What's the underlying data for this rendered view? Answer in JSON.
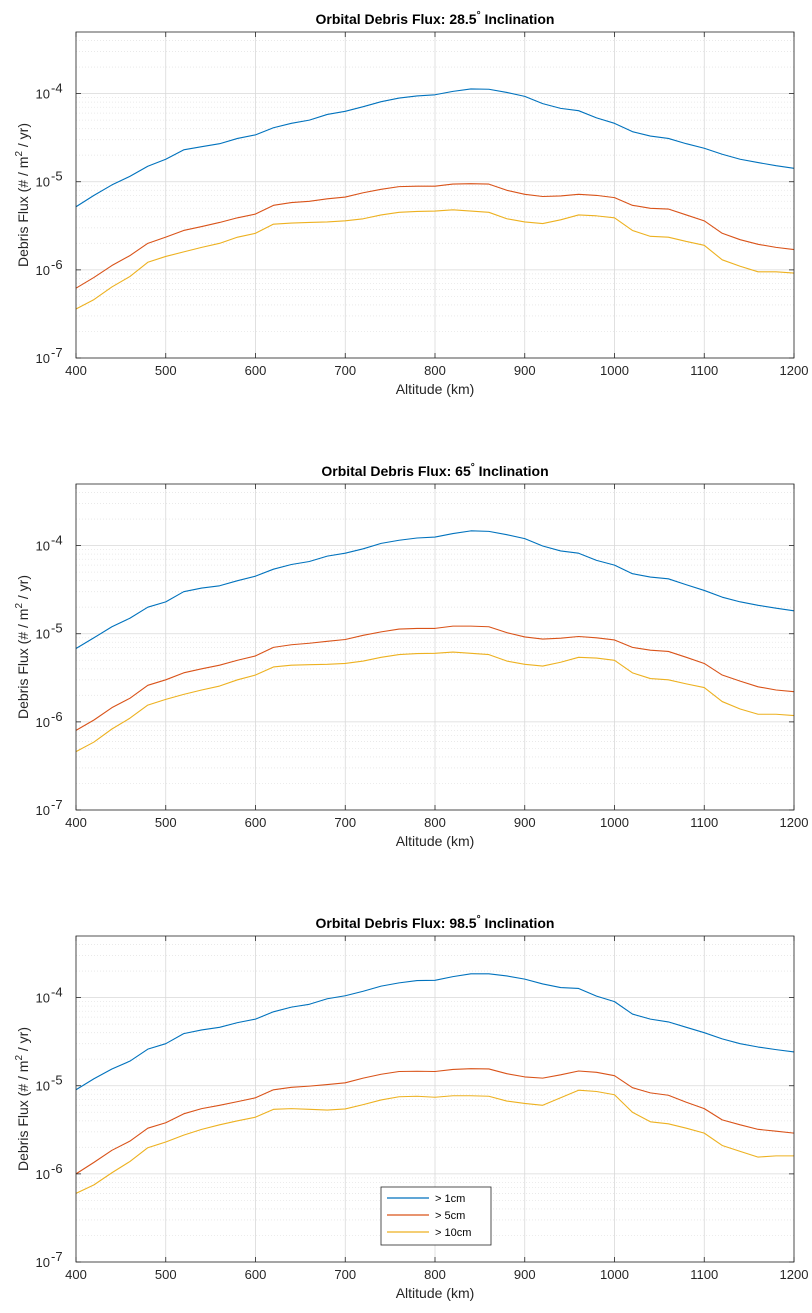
{
  "colors": {
    "series_1cm": "#0072BD",
    "series_5cm": "#D95319",
    "series_10cm": "#EDB120",
    "grid_major": "#d9d9d9",
    "grid_minor": "#e6e6e6",
    "axis": "#262626"
  },
  "chart_data": [
    {
      "type": "line",
      "title_prefix": "Orbital Debris Flux:  28.5",
      "title_degree": "°",
      "title_suffix": " Inclination",
      "xlabel": "Altitude (km)",
      "ylabel_parts": [
        "Debris Flux (# / m",
        "2",
        " / yr)"
      ],
      "xlim": [
        400,
        1200
      ],
      "ylim": [
        1e-07,
        0.0005
      ],
      "yscale": "log",
      "grid": true,
      "xticks": [
        400,
        500,
        600,
        700,
        800,
        900,
        1000,
        1100,
        1200
      ],
      "yticks": [
        {
          "base": "10",
          "exp": "-7",
          "value": 1e-07
        },
        {
          "base": "10",
          "exp": "-6",
          "value": 1e-06
        },
        {
          "base": "10",
          "exp": "-5",
          "value": 1e-05
        },
        {
          "base": "10",
          "exp": "-4",
          "value": 0.0001
        }
      ],
      "x": [
        400,
        420,
        440,
        460,
        480,
        500,
        520,
        540,
        560,
        580,
        600,
        620,
        640,
        660,
        680,
        700,
        720,
        740,
        760,
        780,
        800,
        820,
        840,
        860,
        880,
        900,
        920,
        940,
        960,
        980,
        1000,
        1020,
        1040,
        1060,
        1080,
        1100,
        1120,
        1140,
        1160,
        1180,
        1200
      ],
      "series": [
        {
          "name": "> 1cm",
          "values": [
            5.2e-06,
            7e-06,
            9.2e-06,
            1.15e-05,
            1.5e-05,
            1.8e-05,
            2.3e-05,
            2.5e-05,
            2.7e-05,
            3.1e-05,
            3.4e-05,
            4.1e-05,
            4.6e-05,
            5e-05,
            5.8e-05,
            6.3e-05,
            7.1e-05,
            8.1e-05,
            8.9e-05,
            9.4e-05,
            9.7e-05,
            0.000106,
            0.000113,
            0.000112,
            0.000103,
            9.3e-05,
            7.7e-05,
            6.8e-05,
            6.4e-05,
            5.3e-05,
            4.6e-05,
            3.7e-05,
            3.3e-05,
            3.1e-05,
            2.7e-05,
            2.4e-05,
            2.05e-05,
            1.8e-05,
            1.65e-05,
            1.52e-05,
            1.42e-05
          ]
        },
        {
          "name": "> 5cm",
          "values": [
            6.2e-07,
            8.2e-07,
            1.12e-06,
            1.45e-06,
            2e-06,
            2.35e-06,
            2.8e-06,
            3.1e-06,
            3.45e-06,
            3.9e-06,
            4.3e-06,
            5.4e-06,
            5.8e-06,
            6e-06,
            6.4e-06,
            6.7e-06,
            7.5e-06,
            8.2e-06,
            8.8e-06,
            8.9e-06,
            8.9e-06,
            9.4e-06,
            9.5e-06,
            9.4e-06,
            8e-06,
            7.2e-06,
            6.8e-06,
            6.9e-06,
            7.2e-06,
            7e-06,
            6.6e-06,
            5.4e-06,
            5e-06,
            4.9e-06,
            4.2e-06,
            3.6e-06,
            2.6e-06,
            2.2e-06,
            1.95e-06,
            1.8e-06,
            1.7e-06
          ]
        },
        {
          "name": "> 10cm",
          "values": [
            3.6e-07,
            4.6e-07,
            6.4e-07,
            8.4e-07,
            1.22e-06,
            1.42e-06,
            1.6e-06,
            1.8e-06,
            2e-06,
            2.35e-06,
            2.6e-06,
            3.3e-06,
            3.4e-06,
            3.45e-06,
            3.5e-06,
            3.6e-06,
            3.8e-06,
            4.2e-06,
            4.5e-06,
            4.6e-06,
            4.65e-06,
            4.8e-06,
            4.65e-06,
            4.5e-06,
            3.8e-06,
            3.5e-06,
            3.35e-06,
            3.7e-06,
            4.2e-06,
            4.1e-06,
            3.9e-06,
            2.8e-06,
            2.4e-06,
            2.35e-06,
            2.1e-06,
            1.9e-06,
            1.3e-06,
            1.1e-06,
            9.5e-07,
            9.5e-07,
            9.2e-07
          ]
        }
      ]
    },
    {
      "type": "line",
      "title_prefix": "Orbital Debris Flux:  65",
      "title_degree": "°",
      "title_suffix": " Inclination",
      "xlabel": "Altitude (km)",
      "ylabel_parts": [
        "Debris Flux (# / m",
        "2",
        " / yr)"
      ],
      "xlim": [
        400,
        1200
      ],
      "ylim": [
        1e-07,
        0.0005
      ],
      "yscale": "log",
      "grid": true,
      "xticks": [
        400,
        500,
        600,
        700,
        800,
        900,
        1000,
        1100,
        1200
      ],
      "yticks": [
        {
          "base": "10",
          "exp": "-7",
          "value": 1e-07
        },
        {
          "base": "10",
          "exp": "-6",
          "value": 1e-06
        },
        {
          "base": "10",
          "exp": "-5",
          "value": 1e-05
        },
        {
          "base": "10",
          "exp": "-4",
          "value": 0.0001
        }
      ],
      "x": [
        400,
        420,
        440,
        460,
        480,
        500,
        520,
        540,
        560,
        580,
        600,
        620,
        640,
        660,
        680,
        700,
        720,
        740,
        760,
        780,
        800,
        820,
        840,
        860,
        880,
        900,
        920,
        940,
        960,
        980,
        1000,
        1020,
        1040,
        1060,
        1080,
        1100,
        1120,
        1140,
        1160,
        1180,
        1200
      ],
      "series": [
        {
          "name": "> 1cm",
          "values": [
            6.8e-06,
            9e-06,
            1.2e-05,
            1.5e-05,
            2e-05,
            2.3e-05,
            3e-05,
            3.3e-05,
            3.5e-05,
            4e-05,
            4.5e-05,
            5.4e-05,
            6.1e-05,
            6.6e-05,
            7.6e-05,
            8.2e-05,
            9.2e-05,
            0.000106,
            0.000115,
            0.000122,
            0.000125,
            0.000137,
            0.000147,
            0.000145,
            0.000133,
            0.00012,
            9.9e-05,
            8.7e-05,
            8.2e-05,
            6.8e-05,
            6e-05,
            4.8e-05,
            4.4e-05,
            4.2e-05,
            3.6e-05,
            3.1e-05,
            2.6e-05,
            2.3e-05,
            2.1e-05,
            1.95e-05,
            1.82e-05
          ]
        },
        {
          "name": "> 5cm",
          "values": [
            8e-07,
            1.05e-06,
            1.45e-06,
            1.85e-06,
            2.6e-06,
            3e-06,
            3.6e-06,
            4e-06,
            4.4e-06,
            5e-06,
            5.6e-06,
            7e-06,
            7.5e-06,
            7.8e-06,
            8.2e-06,
            8.6e-06,
            9.6e-06,
            1.05e-05,
            1.13e-05,
            1.15e-05,
            1.15e-05,
            1.22e-05,
            1.22e-05,
            1.2e-05,
            1.03e-05,
            9.2e-06,
            8.7e-06,
            8.9e-06,
            9.3e-06,
            9e-06,
            8.5e-06,
            7e-06,
            6.5e-06,
            6.3e-06,
            5.4e-06,
            4.6e-06,
            3.4e-06,
            2.9e-06,
            2.5e-06,
            2.3e-06,
            2.2e-06
          ]
        },
        {
          "name": "> 10cm",
          "values": [
            4.6e-07,
            5.9e-07,
            8.3e-07,
            1.1e-06,
            1.55e-06,
            1.8e-06,
            2.05e-06,
            2.3e-06,
            2.55e-06,
            3e-06,
            3.4e-06,
            4.2e-06,
            4.4e-06,
            4.45e-06,
            4.5e-06,
            4.6e-06,
            4.9e-06,
            5.4e-06,
            5.8e-06,
            5.95e-06,
            6e-06,
            6.2e-06,
            6e-06,
            5.8e-06,
            4.9e-06,
            4.5e-06,
            4.3e-06,
            4.75e-06,
            5.4e-06,
            5.3e-06,
            5e-06,
            3.6e-06,
            3.1e-06,
            3e-06,
            2.7e-06,
            2.45e-06,
            1.7e-06,
            1.4e-06,
            1.22e-06,
            1.22e-06,
            1.18e-06
          ]
        }
      ]
    },
    {
      "type": "line",
      "title_prefix": "Orbital Debris Flux:  98.5",
      "title_degree": "°",
      "title_suffix": " Inclination",
      "xlabel": "Altitude (km)",
      "ylabel_parts": [
        "Debris Flux (# / m",
        "2",
        " / yr)"
      ],
      "xlim": [
        400,
        1200
      ],
      "ylim": [
        1e-07,
        0.0005
      ],
      "yscale": "log",
      "grid": true,
      "xticks": [
        400,
        500,
        600,
        700,
        800,
        900,
        1000,
        1100,
        1200
      ],
      "yticks": [
        {
          "base": "10",
          "exp": "-7",
          "value": 1e-07
        },
        {
          "base": "10",
          "exp": "-6",
          "value": 1e-06
        },
        {
          "base": "10",
          "exp": "-5",
          "value": 1e-05
        },
        {
          "base": "10",
          "exp": "-4",
          "value": 0.0001
        }
      ],
      "legend": {
        "placement": "lower-center",
        "entries": [
          "> 1cm",
          "> 5cm",
          "> 10cm"
        ]
      },
      "x": [
        400,
        420,
        440,
        460,
        480,
        500,
        520,
        540,
        560,
        580,
        600,
        620,
        640,
        660,
        680,
        700,
        720,
        740,
        760,
        780,
        800,
        820,
        840,
        860,
        880,
        900,
        920,
        940,
        960,
        980,
        1000,
        1020,
        1040,
        1060,
        1080,
        1100,
        1120,
        1140,
        1160,
        1180,
        1200
      ],
      "series": [
        {
          "name": "> 1cm",
          "values": [
            9e-06,
            1.2e-05,
            1.55e-05,
            1.9e-05,
            2.6e-05,
            3e-05,
            3.9e-05,
            4.3e-05,
            4.6e-05,
            5.2e-05,
            5.7e-05,
            6.9e-05,
            7.8e-05,
            8.4e-05,
            9.7e-05,
            0.000105,
            0.000118,
            0.000135,
            0.000147,
            0.000156,
            0.000157,
            0.000173,
            0.000186,
            0.000186,
            0.000176,
            0.000162,
            0.000143,
            0.00013,
            0.000127,
            0.000104,
            9e-05,
            6.5e-05,
            5.7e-05,
            5.3e-05,
            4.6e-05,
            4e-05,
            3.4e-05,
            3e-05,
            2.75e-05,
            2.57e-05,
            2.42e-05
          ]
        },
        {
          "name": "> 5cm",
          "values": [
            1e-06,
            1.35e-06,
            1.85e-06,
            2.35e-06,
            3.3e-06,
            3.8e-06,
            4.8e-06,
            5.5e-06,
            6e-06,
            6.6e-06,
            7.3e-06,
            9e-06,
            9.6e-06,
            9.9e-06,
            1.03e-05,
            1.08e-05,
            1.22e-05,
            1.35e-05,
            1.45e-05,
            1.46e-05,
            1.45e-05,
            1.53e-05,
            1.56e-05,
            1.55e-05,
            1.37e-05,
            1.26e-05,
            1.22e-05,
            1.33e-05,
            1.47e-05,
            1.42e-05,
            1.3e-05,
            9.5e-06,
            8.3e-06,
            7.8e-06,
            6.5e-06,
            5.5e-06,
            4.1e-06,
            3.6e-06,
            3.2e-06,
            3.05e-06,
            2.9e-06
          ]
        },
        {
          "name": "> 10cm",
          "values": [
            6e-07,
            7.5e-07,
            1.03e-06,
            1.38e-06,
            1.98e-06,
            2.3e-06,
            2.75e-06,
            3.2e-06,
            3.6e-06,
            4e-06,
            4.4e-06,
            5.4e-06,
            5.5e-06,
            5.4e-06,
            5.3e-06,
            5.45e-06,
            6.1e-06,
            6.9e-06,
            7.5e-06,
            7.6e-06,
            7.4e-06,
            7.7e-06,
            7.7e-06,
            7.6e-06,
            6.7e-06,
            6.3e-06,
            6e-06,
            7.3e-06,
            8.9e-06,
            8.6e-06,
            7.9e-06,
            5e-06,
            3.9e-06,
            3.7e-06,
            3.3e-06,
            2.9e-06,
            2.1e-06,
            1.8e-06,
            1.55e-06,
            1.6e-06,
            1.6e-06
          ]
        }
      ]
    }
  ]
}
